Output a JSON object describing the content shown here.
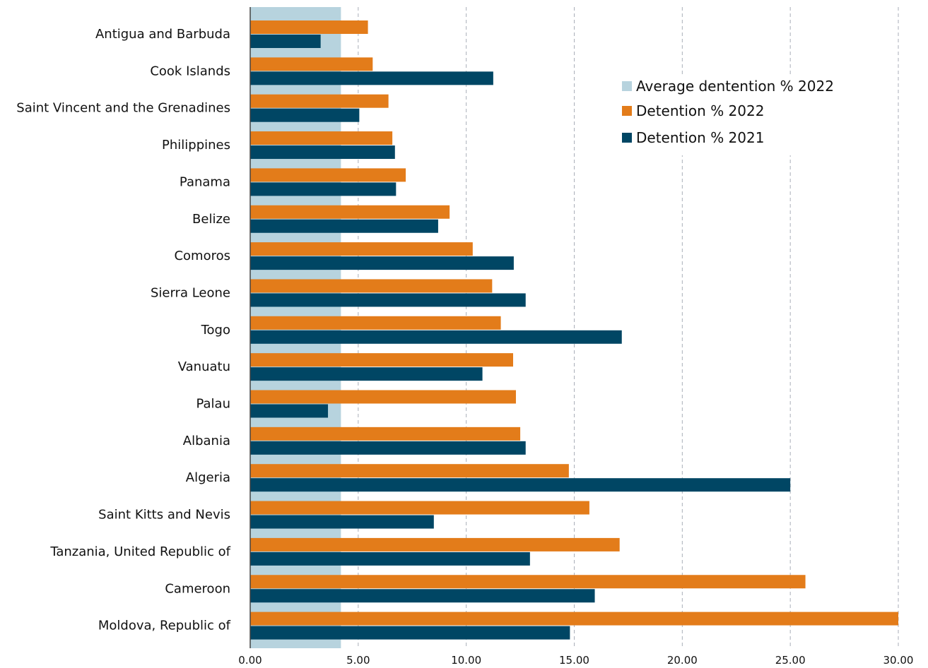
{
  "chart_data": {
    "type": "bar",
    "orientation": "horizontal",
    "title": "",
    "xlabel": "",
    "ylabel": "",
    "categories": [
      "Antigua and Barbuda",
      "Cook Islands",
      "Saint Vincent and the Grenadines",
      "Philippines",
      "Panama",
      "Belize",
      "Comoros",
      "Sierra Leone",
      "Togo",
      "Vanuatu",
      "Palau",
      "Albania",
      "Algeria",
      "Saint Kitts and Nevis",
      "Tanzania, United Republic of",
      "Cameroon",
      "Moldova, Republic of"
    ],
    "average": {
      "name": "Average dentention % 2022",
      "value": 4.2,
      "color": "#b7d3de"
    },
    "series": [
      {
        "name": "Detention % 2022",
        "color": "#e37c1a",
        "values": [
          5.45,
          5.67,
          6.4,
          6.58,
          7.2,
          9.23,
          10.3,
          11.2,
          11.6,
          12.17,
          12.3,
          12.5,
          14.75,
          15.7,
          17.1,
          25.7,
          30.0
        ]
      },
      {
        "name": "Detention % 2021",
        "color": "#004664",
        "values": [
          3.26,
          11.25,
          5.05,
          6.7,
          6.75,
          8.7,
          12.2,
          12.75,
          17.2,
          10.75,
          3.6,
          12.75,
          25.0,
          8.5,
          12.95,
          15.95,
          14.8
        ]
      }
    ],
    "xlim": [
      0,
      30
    ],
    "xticks": [
      "0.00",
      "5.00",
      "10.00",
      "15.00",
      "20.00",
      "25.00",
      "30.00"
    ],
    "grid": "vertical dashed",
    "legend_position": "top-right"
  }
}
